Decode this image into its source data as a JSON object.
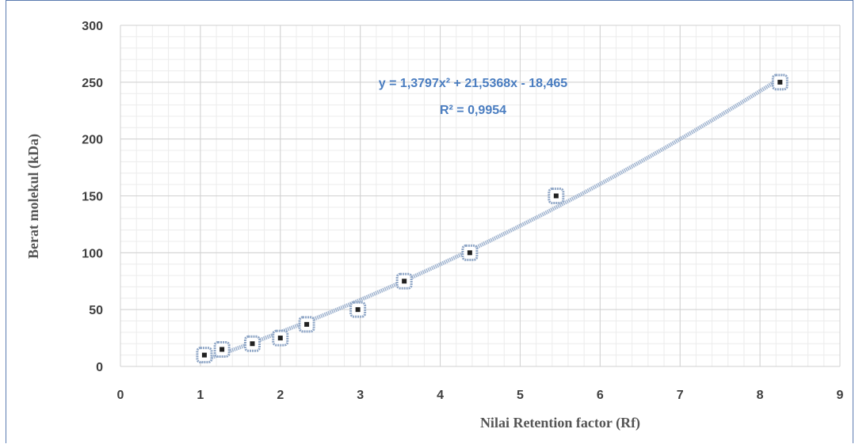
{
  "chart_data": {
    "type": "scatter",
    "xlabel": "Nilai Retention factor (Rf)",
    "ylabel": "Berat molekul (kDa)",
    "xlim": [
      0,
      9
    ],
    "ylim": [
      0,
      300
    ],
    "x_ticks": [
      "0",
      "1",
      "2",
      "3",
      "4",
      "5",
      "6",
      "7",
      "8",
      "9"
    ],
    "y_ticks": [
      "0",
      "50",
      "100",
      "150",
      "200",
      "250",
      "300"
    ],
    "grid": true,
    "series": [
      {
        "points": [
          {
            "x": 1.05,
            "y": 10
          },
          {
            "x": 1.27,
            "y": 15
          },
          {
            "x": 1.65,
            "y": 20
          },
          {
            "x": 2.0,
            "y": 25
          },
          {
            "x": 2.33,
            "y": 37
          },
          {
            "x": 2.97,
            "y": 50
          },
          {
            "x": 3.55,
            "y": 75
          },
          {
            "x": 4.37,
            "y": 100
          },
          {
            "x": 5.45,
            "y": 150
          },
          {
            "x": 8.25,
            "y": 250
          }
        ]
      }
    ],
    "trendline": {
      "type": "polynomial",
      "coefficients": [
        1.3797,
        21.5368,
        -18.465
      ],
      "equation": "y = 1,3797x² + 21,5368x - 18,465",
      "r_squared": "R² = 0,9954"
    },
    "colors": {
      "marker": "#8fa6c6",
      "trendline": "#9fb3cf",
      "equation": "#4a7dc0",
      "grid_major": "#d0d0d0",
      "grid_minor": "#ececec"
    }
  }
}
